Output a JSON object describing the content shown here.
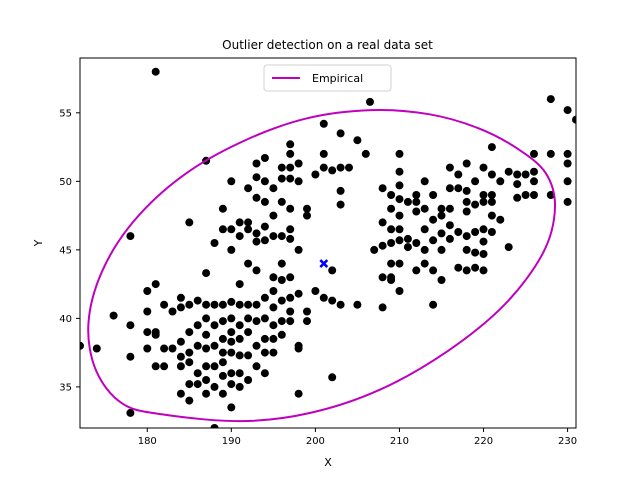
{
  "chart_data": {
    "type": "scatter",
    "title": "Outlier detection on a real data set",
    "xlabel": "X",
    "ylabel": "Y",
    "xlim": [
      172,
      231
    ],
    "ylim": [
      32,
      59
    ],
    "xticks": [
      180,
      190,
      200,
      210,
      220,
      230
    ],
    "yticks": [
      35,
      40,
      45,
      50,
      55
    ],
    "grid": false,
    "legend": {
      "placement": "top-center",
      "entries": [
        {
          "label": "Empirical",
          "color": "#bf00bf",
          "marker": "line"
        }
      ]
    },
    "colors": {
      "points": "#000000",
      "center": "#0000ff",
      "ellipse": "#bf00bf"
    },
    "center": {
      "x": 201,
      "y": 44
    },
    "ellipse": {
      "label": "Empirical",
      "path": [
        [
          181.7,
          33.0
        ],
        [
          177.0,
          33.8
        ],
        [
          173.9,
          36.2
        ],
        [
          173.0,
          39.6
        ],
        [
          174.6,
          43.4
        ],
        [
          178.4,
          47.1
        ],
        [
          184.2,
          50.4
        ],
        [
          191.3,
          52.9
        ],
        [
          199.0,
          54.6
        ],
        [
          206.7,
          55.2
        ],
        [
          213.5,
          54.9
        ],
        [
          219.3,
          53.9
        ],
        [
          224.0,
          52.4
        ],
        [
          227.4,
          50.6
        ],
        [
          228.5,
          48.1
        ],
        [
          227.1,
          44.8
        ],
        [
          222.5,
          41.0
        ],
        [
          215.7,
          37.6
        ],
        [
          207.7,
          34.8
        ],
        [
          199.4,
          33.1
        ],
        [
          191.2,
          32.5
        ]
      ]
    },
    "points": [
      [
        181,
        58
      ],
      [
        206.5,
        55.8
      ],
      [
        201,
        54.2
      ],
      [
        203,
        53.5
      ],
      [
        228,
        56
      ],
      [
        230,
        55.2
      ],
      [
        231,
        54.5
      ],
      [
        176,
        40.2
      ],
      [
        174,
        37.8
      ],
      [
        172,
        38
      ],
      [
        178,
        46
      ],
      [
        178,
        39.5
      ],
      [
        178,
        37.2
      ],
      [
        178,
        33.1
      ],
      [
        180,
        42
      ],
      [
        180,
        40.5
      ],
      [
        180,
        39
      ],
      [
        180,
        37.8
      ],
      [
        181,
        42.5
      ],
      [
        181,
        39
      ],
      [
        181,
        38.8
      ],
      [
        181,
        36.5
      ],
      [
        182,
        41
      ],
      [
        182,
        37.8
      ],
      [
        182,
        36.5
      ],
      [
        183,
        40.5
      ],
      [
        183,
        37.8
      ],
      [
        184,
        41.5
      ],
      [
        184,
        40.8
      ],
      [
        184,
        38.3
      ],
      [
        184,
        37.2
      ],
      [
        184,
        36.5
      ],
      [
        184,
        34.5
      ],
      [
        185,
        47
      ],
      [
        185,
        41
      ],
      [
        185,
        39
      ],
      [
        185,
        37.5
      ],
      [
        185,
        36.8
      ],
      [
        185,
        35.2
      ],
      [
        185,
        34
      ],
      [
        186,
        41.3
      ],
      [
        186,
        39.5
      ],
      [
        186,
        38
      ],
      [
        186,
        36
      ],
      [
        186,
        35.2
      ],
      [
        187,
        51.5
      ],
      [
        187,
        43.3
      ],
      [
        187,
        41
      ],
      [
        187,
        40
      ],
      [
        187,
        38.8
      ],
      [
        187,
        37.8
      ],
      [
        187,
        36.5
      ],
      [
        187,
        35.5
      ],
      [
        187,
        34.5
      ],
      [
        188,
        45.5
      ],
      [
        188,
        41
      ],
      [
        188,
        39.5
      ],
      [
        188,
        38
      ],
      [
        188,
        36.5
      ],
      [
        188,
        35
      ],
      [
        188,
        32
      ],
      [
        189,
        48
      ],
      [
        189,
        46.5
      ],
      [
        189,
        41
      ],
      [
        189,
        39.8
      ],
      [
        189,
        38.5
      ],
      [
        189,
        37.5
      ],
      [
        189,
        36.8
      ],
      [
        189,
        35.8
      ],
      [
        189,
        34.5
      ],
      [
        190,
        50
      ],
      [
        190,
        46.5
      ],
      [
        190,
        45
      ],
      [
        190,
        41.2
      ],
      [
        190,
        40
      ],
      [
        190,
        39
      ],
      [
        190,
        38.3
      ],
      [
        190,
        37.5
      ],
      [
        190,
        36
      ],
      [
        190,
        35.2
      ],
      [
        190,
        33.5
      ],
      [
        191,
        47
      ],
      [
        191,
        46
      ],
      [
        191,
        42.5
      ],
      [
        191,
        41
      ],
      [
        191,
        39.5
      ],
      [
        191,
        38.5
      ],
      [
        191,
        37.3
      ],
      [
        191,
        36
      ],
      [
        191,
        35
      ],
      [
        192,
        49.5
      ],
      [
        192,
        47
      ],
      [
        192,
        46.5
      ],
      [
        192,
        44
      ],
      [
        192,
        41
      ],
      [
        192,
        40
      ],
      [
        192,
        39
      ],
      [
        192,
        37.3
      ],
      [
        192,
        35.5
      ],
      [
        193,
        51.3
      ],
      [
        193,
        50.3
      ],
      [
        193,
        48.8
      ],
      [
        193,
        46.2
      ],
      [
        193,
        45.6
      ],
      [
        193,
        43.5
      ],
      [
        193,
        41
      ],
      [
        193,
        39.8
      ],
      [
        193,
        38
      ],
      [
        193,
        36.5
      ],
      [
        194,
        51.7
      ],
      [
        194,
        50
      ],
      [
        194,
        48.5
      ],
      [
        194,
        46.7
      ],
      [
        194,
        45.7
      ],
      [
        194,
        41.5
      ],
      [
        194,
        40
      ],
      [
        194,
        38.5
      ],
      [
        194,
        37.5
      ],
      [
        194,
        36
      ],
      [
        195,
        49.5
      ],
      [
        195,
        47.5
      ],
      [
        195,
        46
      ],
      [
        195,
        43
      ],
      [
        195,
        42
      ],
      [
        195,
        40.8
      ],
      [
        195,
        39.5
      ],
      [
        195,
        38.5
      ],
      [
        195,
        37.5
      ],
      [
        196,
        51
      ],
      [
        196,
        50.2
      ],
      [
        196,
        48.5
      ],
      [
        196,
        46
      ],
      [
        196,
        44
      ],
      [
        196,
        42.8
      ],
      [
        196,
        41.3
      ],
      [
        196,
        39.8
      ],
      [
        196,
        38.8
      ],
      [
        197,
        52.7
      ],
      [
        197,
        52
      ],
      [
        197,
        51
      ],
      [
        197,
        50.2
      ],
      [
        197,
        48
      ],
      [
        197,
        46.5
      ],
      [
        197,
        45.8
      ],
      [
        197,
        43
      ],
      [
        197,
        41.5
      ],
      [
        197,
        40.5
      ],
      [
        197,
        39.8
      ],
      [
        198,
        51.3
      ],
      [
        198,
        50
      ],
      [
        198,
        45
      ],
      [
        198,
        41.8
      ],
      [
        198,
        38
      ],
      [
        198,
        37.8
      ],
      [
        198,
        34.5
      ],
      [
        199,
        48
      ],
      [
        199,
        47.5
      ],
      [
        199,
        40.5
      ],
      [
        199,
        39.8
      ],
      [
        200,
        50.5
      ],
      [
        200,
        42
      ],
      [
        201,
        52
      ],
      [
        201,
        51
      ],
      [
        201,
        41.5
      ],
      [
        202,
        50.8
      ],
      [
        202,
        43.5
      ],
      [
        202,
        41.3
      ],
      [
        202,
        35.7
      ],
      [
        203,
        51
      ],
      [
        203,
        49.3
      ],
      [
        203,
        48.3
      ],
      [
        203,
        41
      ],
      [
        204,
        51
      ],
      [
        205,
        53
      ],
      [
        205,
        41
      ],
      [
        206,
        52
      ],
      [
        207,
        45
      ],
      [
        208,
        49.5
      ],
      [
        208,
        47
      ],
      [
        208,
        45.3
      ],
      [
        208,
        43
      ],
      [
        208,
        40.8
      ],
      [
        209,
        49
      ],
      [
        209,
        48
      ],
      [
        209,
        46.5
      ],
      [
        209,
        45.5
      ],
      [
        209,
        44
      ],
      [
        209,
        43
      ],
      [
        209,
        42.8
      ],
      [
        210,
        52
      ],
      [
        210,
        50.7
      ],
      [
        210,
        49.7
      ],
      [
        210,
        48.7
      ],
      [
        210,
        47.5
      ],
      [
        210,
        46.5
      ],
      [
        210,
        45.7
      ],
      [
        210,
        44
      ],
      [
        210,
        42
      ],
      [
        211,
        48.5
      ],
      [
        211,
        45.8
      ],
      [
        211,
        45.2
      ],
      [
        212,
        49
      ],
      [
        212,
        48.5
      ],
      [
        212,
        47.8
      ],
      [
        212,
        45.5
      ],
      [
        212,
        43.5
      ],
      [
        213,
        50
      ],
      [
        213,
        48
      ],
      [
        213,
        46.5
      ],
      [
        213,
        45
      ],
      [
        213,
        44
      ],
      [
        214,
        49
      ],
      [
        214,
        47.2
      ],
      [
        214,
        45.7
      ],
      [
        214,
        43.5
      ],
      [
        214,
        41
      ],
      [
        215,
        48
      ],
      [
        215,
        47.5
      ],
      [
        215,
        46.2
      ],
      [
        215,
        45
      ],
      [
        215,
        42.8
      ],
      [
        216,
        51
      ],
      [
        216,
        49.5
      ],
      [
        216,
        48
      ],
      [
        216,
        46.8
      ],
      [
        216,
        45.8
      ],
      [
        217,
        50.5
      ],
      [
        217,
        49.5
      ],
      [
        217,
        46.3
      ],
      [
        217,
        43.7
      ],
      [
        218,
        51.3
      ],
      [
        218,
        49.3
      ],
      [
        218,
        48.5
      ],
      [
        218,
        47.8
      ],
      [
        218,
        46
      ],
      [
        218,
        45
      ],
      [
        218,
        43.5
      ],
      [
        219,
        50
      ],
      [
        219,
        48.3
      ],
      [
        219,
        46.3
      ],
      [
        219,
        44.8
      ],
      [
        219,
        43.7
      ],
      [
        220,
        51
      ],
      [
        220,
        49
      ],
      [
        220,
        48.5
      ],
      [
        220,
        46.5
      ],
      [
        220,
        45.6
      ],
      [
        220,
        44.7
      ],
      [
        220,
        43.5
      ],
      [
        221,
        52.5
      ],
      [
        221,
        50.5
      ],
      [
        221,
        49
      ],
      [
        221,
        48.5
      ],
      [
        221,
        47.5
      ],
      [
        221,
        46.3
      ],
      [
        222,
        50
      ],
      [
        222,
        47.2
      ],
      [
        223,
        50.7
      ],
      [
        223,
        45.2
      ],
      [
        224,
        50.5
      ],
      [
        224,
        49.8
      ],
      [
        224,
        48.8
      ],
      [
        225,
        50.5
      ],
      [
        225,
        49
      ],
      [
        226,
        52
      ],
      [
        226,
        50.7
      ],
      [
        226,
        50
      ],
      [
        226,
        49
      ],
      [
        228,
        52
      ],
      [
        228,
        49
      ],
      [
        230,
        52
      ],
      [
        230,
        51.3
      ],
      [
        230,
        50
      ],
      [
        230,
        48.5
      ]
    ]
  }
}
